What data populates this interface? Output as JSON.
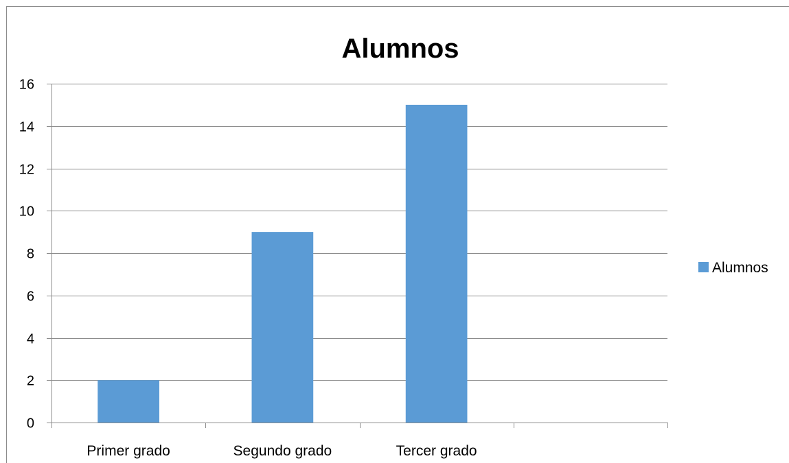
{
  "chart_data": {
    "type": "bar",
    "title": "Alumnos",
    "categories": [
      "Primer grado",
      "Segundo grado",
      "Tercer grado",
      ""
    ],
    "series": [
      {
        "name": "Alumnos",
        "values": [
          2,
          9,
          15,
          null
        ],
        "color": "#5b9bd5"
      }
    ],
    "xlabel": "",
    "ylabel": "",
    "ylim": [
      0,
      16
    ],
    "yticks": [
      "0",
      "2",
      "4",
      "6",
      "8",
      "10",
      "12",
      "14",
      "16"
    ],
    "grid": true,
    "legend_position": "right"
  }
}
